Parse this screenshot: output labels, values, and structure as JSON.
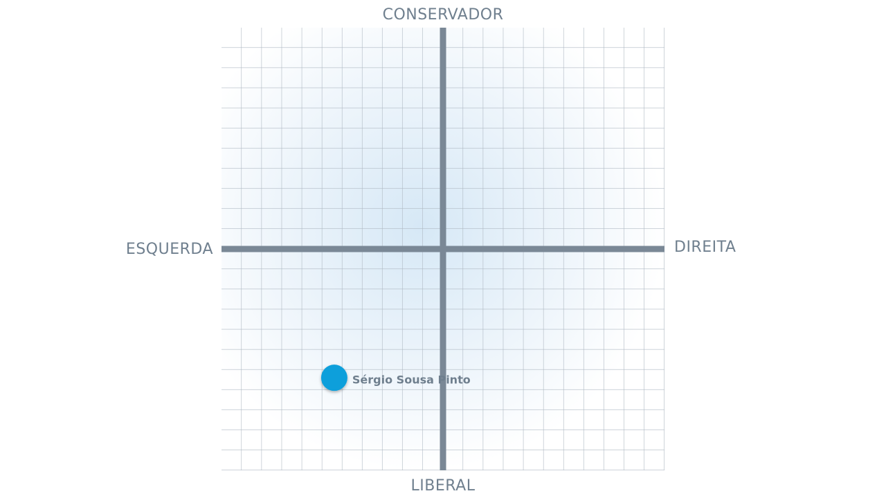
{
  "chart_data": {
    "type": "scatter",
    "top_label": "CONSERVADOR",
    "bottom_label": "LIBERAL",
    "left_label": "ESQUERDA",
    "right_label": "DIREITA",
    "xlim": [
      -11,
      11
    ],
    "ylim": [
      -11,
      11
    ],
    "grid": true,
    "series": [
      {
        "name": "Sérgio Sousa Pinto",
        "color": "#0e9fdb",
        "x": [
          -5.4
        ],
        "values": [
          -6.4
        ]
      }
    ]
  }
}
